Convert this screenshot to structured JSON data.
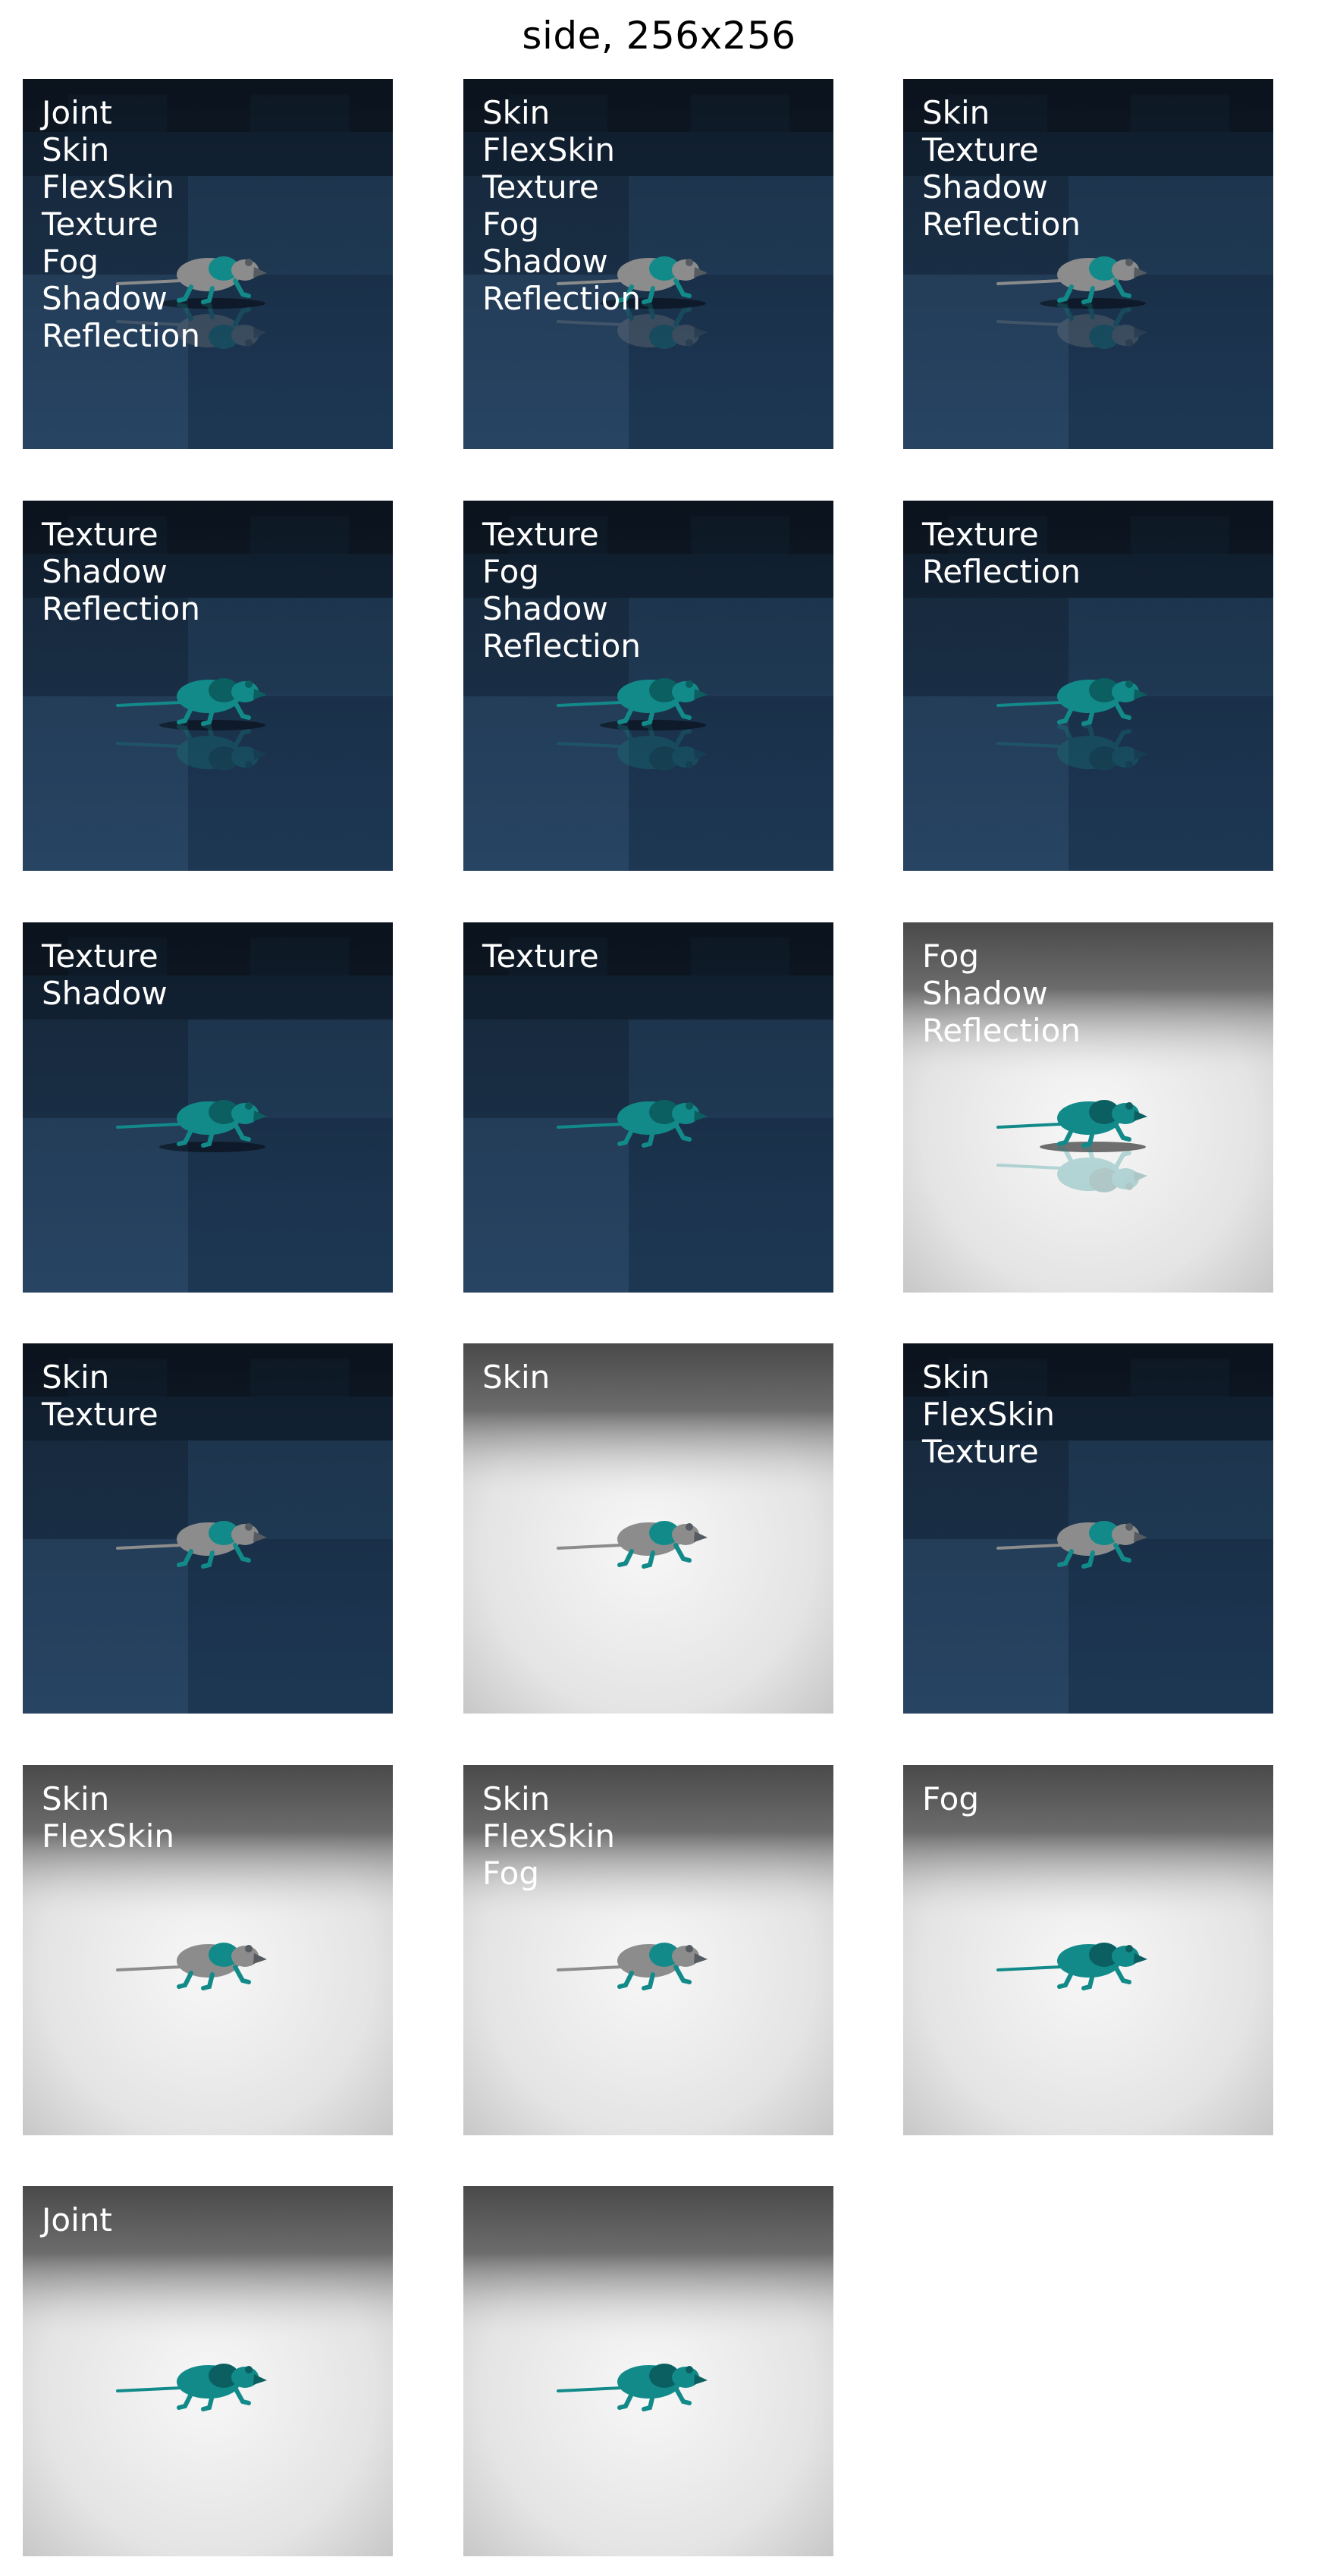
{
  "figure": {
    "title": "side, 256x256",
    "colors": {
      "tiled_floor": "#1c3652",
      "plain_floor": "#e4e4e4",
      "rat_teal": "#138a8a",
      "rat_gray": "#8c8c8c"
    },
    "panels": [
      {
        "labels": [
          "Joint",
          "Skin",
          "FlexSkin",
          "Texture",
          "Fog",
          "Shadow",
          "Reflection"
        ],
        "background": "tiled",
        "rat": "skin",
        "shadow": true,
        "reflection": true
      },
      {
        "labels": [
          "Skin",
          "FlexSkin",
          "Texture",
          "Fog",
          "Shadow",
          "Reflection"
        ],
        "background": "tiled",
        "rat": "skin",
        "shadow": true,
        "reflection": true
      },
      {
        "labels": [
          "Skin",
          "Texture",
          "Shadow",
          "Reflection"
        ],
        "background": "tiled",
        "rat": "skin",
        "shadow": true,
        "reflection": true
      },
      {
        "labels": [
          "Texture",
          "Shadow",
          "Reflection"
        ],
        "background": "tiled",
        "rat": "teal",
        "shadow": true,
        "reflection": true
      },
      {
        "labels": [
          "Texture",
          "Fog",
          "Shadow",
          "Reflection"
        ],
        "background": "tiled",
        "rat": "teal",
        "shadow": true,
        "reflection": true
      },
      {
        "labels": [
          "Texture",
          "Reflection"
        ],
        "background": "tiled",
        "rat": "teal",
        "shadow": false,
        "reflection": true
      },
      {
        "labels": [
          "Texture",
          "Shadow"
        ],
        "background": "tiled",
        "rat": "teal",
        "shadow": true,
        "reflection": false
      },
      {
        "labels": [
          "Texture"
        ],
        "background": "tiled",
        "rat": "teal",
        "shadow": false,
        "reflection": false
      },
      {
        "labels": [
          "Fog",
          "Shadow",
          "Reflection"
        ],
        "background": "plain",
        "rat": "teal",
        "shadow": true,
        "reflection": true
      },
      {
        "labels": [
          "Skin",
          "Texture"
        ],
        "background": "tiled",
        "rat": "skin",
        "shadow": false,
        "reflection": false
      },
      {
        "labels": [
          "Skin"
        ],
        "background": "plain",
        "rat": "skin",
        "shadow": false,
        "reflection": false
      },
      {
        "labels": [
          "Skin",
          "FlexSkin",
          "Texture"
        ],
        "background": "tiled",
        "rat": "skin",
        "shadow": false,
        "reflection": false
      },
      {
        "labels": [
          "Skin",
          "FlexSkin"
        ],
        "background": "plain",
        "rat": "skin",
        "shadow": false,
        "reflection": false
      },
      {
        "labels": [
          "Skin",
          "FlexSkin",
          "Fog"
        ],
        "background": "plain",
        "rat": "skin",
        "shadow": false,
        "reflection": false
      },
      {
        "labels": [
          "Fog"
        ],
        "background": "plain",
        "rat": "teal",
        "shadow": false,
        "reflection": false
      },
      {
        "labels": [
          "Joint"
        ],
        "background": "plain",
        "rat": "teal",
        "shadow": false,
        "reflection": false
      },
      {
        "labels": [],
        "background": "plain",
        "rat": "teal",
        "shadow": false,
        "reflection": false
      }
    ]
  }
}
